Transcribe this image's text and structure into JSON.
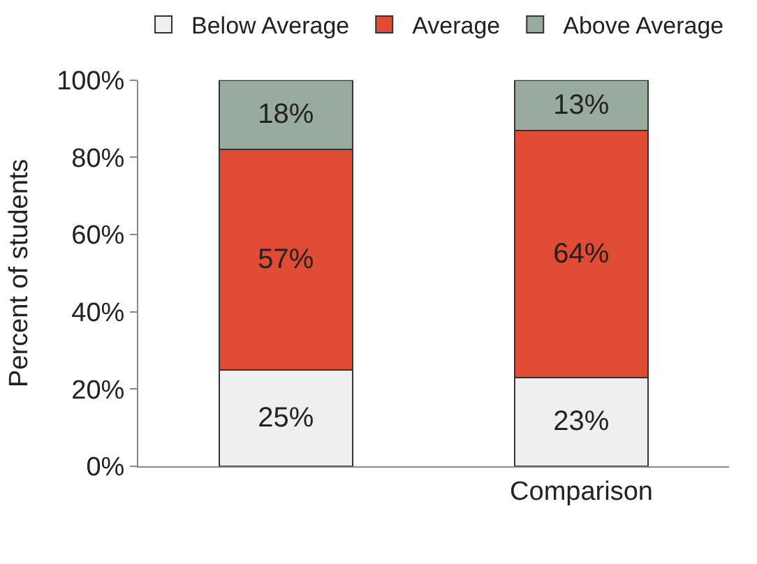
{
  "chart_data": {
    "type": "bar",
    "stacked": true,
    "ylabel": "Percent of students",
    "categories": [
      null,
      "Comparison"
    ],
    "series": [
      {
        "name": "Below Average",
        "color": "#efefef",
        "values": [
          25,
          23
        ],
        "value_labels": [
          "25%",
          "23%"
        ]
      },
      {
        "name": "Average",
        "color": "#e04b36",
        "values": [
          57,
          64
        ],
        "value_labels": [
          "57%",
          "64%"
        ]
      },
      {
        "name": "Above Average",
        "color": "#99aa9f",
        "values": [
          18,
          13
        ],
        "value_labels": [
          "18%",
          "13%"
        ]
      }
    ],
    "ylim": [
      0,
      100
    ],
    "yticks": [
      {
        "value": 0,
        "label": "0%"
      },
      {
        "value": 20,
        "label": "20%"
      },
      {
        "value": 40,
        "label": "40%"
      },
      {
        "value": 60,
        "label": "60%"
      },
      {
        "value": 80,
        "label": "80%"
      },
      {
        "value": 100,
        "label": "100%"
      }
    ],
    "legend": "top"
  }
}
